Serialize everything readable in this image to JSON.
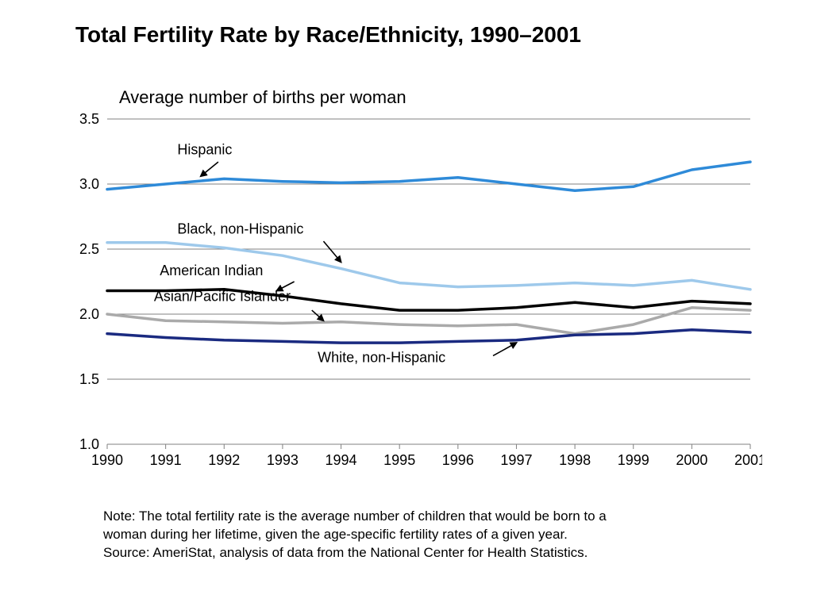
{
  "chart": {
    "type": "line",
    "title": "Total Fertility Rate by Race/Ethnicity, 1990–2001",
    "subtitle": "Average number of births per woman",
    "title_fontsize": 28,
    "subtitle_fontsize": 22,
    "axis_fontsize": 18,
    "label_fontsize": 18,
    "background_color": "#ffffff",
    "grid_color": "#808080",
    "text_color": "#000000",
    "xlim": [
      1990,
      2001
    ],
    "xtick_step": 1,
    "xticks": [
      1990,
      1991,
      1992,
      1993,
      1994,
      1995,
      1996,
      1997,
      1998,
      1999,
      2000,
      2001
    ],
    "ylim": [
      1.0,
      3.5
    ],
    "ytick_step": 0.5,
    "yticks": [
      1.0,
      1.5,
      2.0,
      2.5,
      3.0,
      3.5
    ],
    "ytick_labels": [
      "1.0",
      "1.5",
      "2.0",
      "2.5",
      "3.0",
      "3.5"
    ],
    "line_width": 3.5,
    "series": [
      {
        "name": "Hispanic",
        "color": "#2e8ad8",
        "label_xy": [
          1991.2,
          3.23
        ],
        "arrow_from": [
          1991.9,
          3.17
        ],
        "arrow_to": [
          1991.6,
          3.06
        ],
        "values": [
          2.96,
          3.0,
          3.04,
          3.02,
          3.01,
          3.02,
          3.05,
          3.0,
          2.95,
          2.98,
          3.11,
          3.17
        ]
      },
      {
        "name": "Black, non-Hispanic",
        "color": "#9ec9eb",
        "label_xy": [
          1991.2,
          2.62
        ],
        "arrow_from": [
          1993.7,
          2.56
        ],
        "arrow_to": [
          1994.0,
          2.4
        ],
        "values": [
          2.55,
          2.55,
          2.51,
          2.45,
          2.35,
          2.24,
          2.21,
          2.22,
          2.24,
          2.22,
          2.26,
          2.19
        ]
      },
      {
        "name": "American Indian",
        "color": "#000000",
        "label_xy": [
          1990.9,
          2.3
        ],
        "arrow_from": [
          1993.2,
          2.25
        ],
        "arrow_to": [
          1992.9,
          2.18
        ],
        "values": [
          2.18,
          2.18,
          2.19,
          2.14,
          2.08,
          2.03,
          2.03,
          2.05,
          2.09,
          2.05,
          2.1,
          2.08
        ]
      },
      {
        "name": "Asian/Pacific Islander",
        "color": "#aaaaaa",
        "label_xy": [
          1990.8,
          2.1
        ],
        "arrow_from": [
          1993.5,
          2.03
        ],
        "arrow_to": [
          1993.7,
          1.95
        ],
        "values": [
          2.0,
          1.95,
          1.94,
          1.93,
          1.94,
          1.92,
          1.91,
          1.92,
          1.85,
          1.92,
          2.05,
          2.03
        ]
      },
      {
        "name": "White, non-Hispanic",
        "color": "#1a2a80",
        "label_xy": [
          1993.6,
          1.63
        ],
        "arrow_from": [
          1996.6,
          1.68
        ],
        "arrow_to": [
          1997.0,
          1.78
        ],
        "values": [
          1.85,
          1.82,
          1.8,
          1.79,
          1.78,
          1.78,
          1.79,
          1.8,
          1.84,
          1.85,
          1.88,
          1.86
        ]
      }
    ],
    "note_line1": "Note: The total fertility rate is the average number of children that would be born to a",
    "note_line2": "woman during her lifetime, given the age-specific fertility rates of a given year.",
    "source": "Source: AmeriStat, analysis of data from the National Center for Health Statistics."
  }
}
